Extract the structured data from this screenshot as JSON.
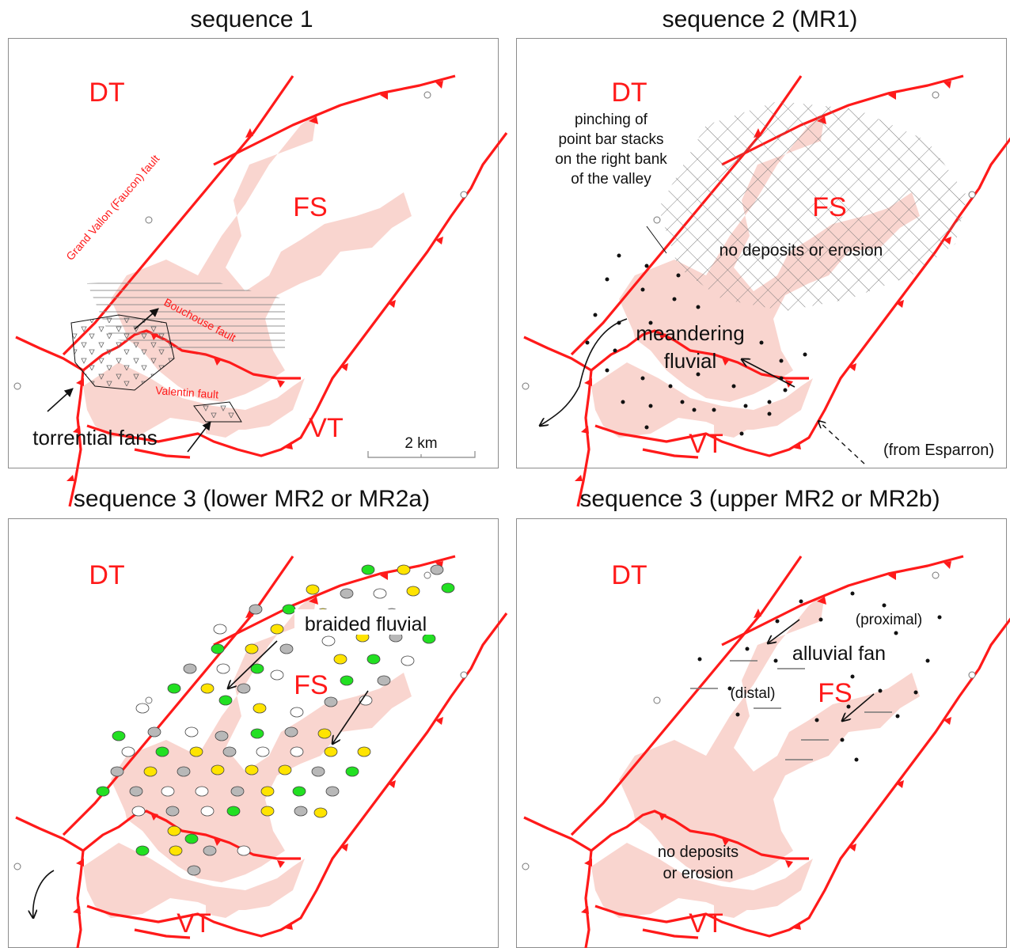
{
  "colors": {
    "fault": "#ff1a1a",
    "outcrop": "#f9d5cf",
    "white_dot": "#ffffff",
    "yellow_dot": "#ffe400",
    "gray_dot": "#b8b8b8",
    "green_dot": "#22e022"
  },
  "panels": [
    {
      "title": "sequence 1",
      "labels": {
        "dt": "DT",
        "fs": "FS",
        "vt": "VT"
      },
      "fault_names": {
        "grand_vallon": "Grand Vallon (Faucon) fault",
        "bouchouse": "Bouchouse fault",
        "valentin": "Valentin fault"
      },
      "annotation": "torrential fans",
      "scale_bar": "2 km"
    },
    {
      "title": "sequence 2 (MR1)",
      "labels": {
        "dt": "DT",
        "fs": "FS",
        "vt": "VT"
      },
      "note_lines": [
        "pinching of",
        "point bar stacks",
        "on the right bank",
        "of the valley"
      ],
      "no_deposits": "no deposits or erosion",
      "facies": [
        "meandering",
        "fluvial"
      ],
      "source": "(from Esparron)"
    },
    {
      "title": "sequence 3 (lower MR2 or MR2a)",
      "labels": {
        "dt": "DT",
        "fs": "FS",
        "vt": "VT"
      },
      "facies": "braided fluvial"
    },
    {
      "title": "sequence 3 (upper MR2 or MR2b)",
      "labels": {
        "dt": "DT",
        "fs": "FS",
        "vt": "VT"
      },
      "facies": "alluvial fan",
      "proximal": "(proximal)",
      "distal": "(distal)",
      "no_deposits_lines": [
        "no deposits",
        "or erosion"
      ]
    }
  ]
}
